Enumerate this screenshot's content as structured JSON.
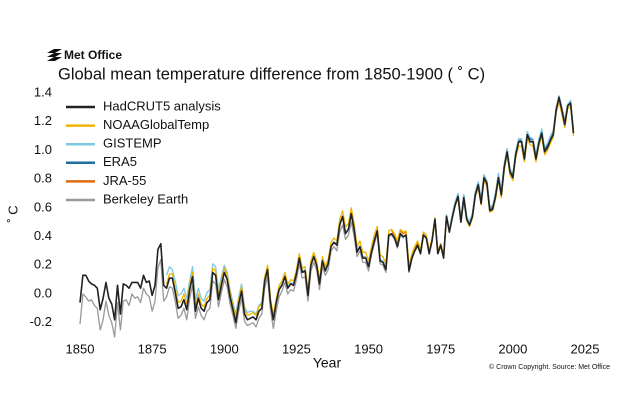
{
  "logo": "Met Office",
  "chart_data": {
    "type": "line",
    "title": "Global mean temperature difference from 1850-1900 ( ˚ C)",
    "xlabel": "Year",
    "ylabel": "˚ C",
    "source_note": "© Crown Copyright. Source: Met Office",
    "xlim": [
      1850,
      2025
    ],
    "xticks": [
      1850,
      1875,
      1900,
      1925,
      1950,
      1975,
      2000,
      2025
    ],
    "ylim": [
      -0.3,
      1.4
    ],
    "yticks": [
      -0.2,
      {
        "value": 0,
        "label": "0.0"
      },
      0.2,
      0.4,
      0.6,
      0.8,
      {
        "value": 1,
        "label": "1.0"
      },
      1.2,
      1.4
    ],
    "legend": "upper-left",
    "x": [
      1850,
      1851,
      1852,
      1853,
      1854,
      1855,
      1856,
      1857,
      1858,
      1859,
      1860,
      1861,
      1862,
      1863,
      1864,
      1865,
      1866,
      1867,
      1868,
      1869,
      1870,
      1871,
      1872,
      1873,
      1874,
      1875,
      1876,
      1877,
      1878,
      1879,
      1880,
      1881,
      1882,
      1883,
      1884,
      1885,
      1886,
      1887,
      1888,
      1889,
      1890,
      1891,
      1892,
      1893,
      1894,
      1895,
      1896,
      1897,
      1898,
      1899,
      1900,
      1901,
      1902,
      1903,
      1904,
      1905,
      1906,
      1907,
      1908,
      1909,
      1910,
      1911,
      1912,
      1913,
      1914,
      1915,
      1916,
      1917,
      1918,
      1919,
      1920,
      1921,
      1922,
      1923,
      1924,
      1925,
      1926,
      1927,
      1928,
      1929,
      1930,
      1931,
      1932,
      1933,
      1934,
      1935,
      1936,
      1937,
      1938,
      1939,
      1940,
      1941,
      1942,
      1943,
      1944,
      1945,
      1946,
      1947,
      1948,
      1949,
      1950,
      1951,
      1952,
      1953,
      1954,
      1955,
      1956,
      1957,
      1958,
      1959,
      1960,
      1961,
      1962,
      1963,
      1964,
      1965,
      1966,
      1967,
      1968,
      1969,
      1970,
      1971,
      1972,
      1973,
      1974,
      1975,
      1976,
      1977,
      1978,
      1979,
      1980,
      1981,
      1982,
      1983,
      1984,
      1985,
      1986,
      1987,
      1988,
      1989,
      1990,
      1991,
      1992,
      1993,
      1994,
      1995,
      1996,
      1997,
      1998,
      1999,
      2000,
      2001,
      2002,
      2003,
      2004,
      2005,
      2006,
      2007,
      2008,
      2009,
      2010,
      2011,
      2012,
      2013,
      2014,
      2015,
      2016,
      2017,
      2018,
      2019,
      2020,
      2021
    ],
    "series": [
      {
        "name": "HadCRUT5 analysis",
        "color": "#222222",
        "values": [
          -0.06,
          0.13,
          0.13,
          0.09,
          0.07,
          0.06,
          0.04,
          -0.11,
          -0.03,
          0.08,
          -0.03,
          -0.07,
          -0.18,
          0.06,
          -0.14,
          0.07,
          0.06,
          0.04,
          0.08,
          0.08,
          0.08,
          0.04,
          0.13,
          0.08,
          0.09,
          -0.01,
          0.06,
          0.31,
          0.35,
          0.06,
          0.04,
          0.11,
          0.11,
          0.01,
          -0.1,
          -0.09,
          -0.04,
          -0.11,
          0.03,
          0.12,
          -0.12,
          -0.03,
          -0.1,
          -0.12,
          -0.06,
          -0.04,
          0.15,
          0.13,
          -0.04,
          0.06,
          0.15,
          0.1,
          -0.02,
          -0.11,
          -0.2,
          -0.07,
          0.02,
          -0.14,
          -0.18,
          -0.17,
          -0.16,
          -0.18,
          -0.12,
          -0.1,
          0.09,
          0.17,
          -0.06,
          -0.18,
          -0.06,
          0.03,
          0.06,
          0.12,
          0.04,
          0.07,
          0.06,
          0.14,
          0.25,
          0.15,
          0.16,
          -0.01,
          0.2,
          0.26,
          0.2,
          0.07,
          0.23,
          0.16,
          0.21,
          0.33,
          0.36,
          0.34,
          0.48,
          0.54,
          0.42,
          0.45,
          0.56,
          0.45,
          0.29,
          0.33,
          0.25,
          0.25,
          0.19,
          0.29,
          0.37,
          0.44,
          0.23,
          0.22,
          0.17,
          0.41,
          0.42,
          0.39,
          0.33,
          0.42,
          0.4,
          0.41,
          0.16,
          0.25,
          0.3,
          0.34,
          0.28,
          0.41,
          0.39,
          0.28,
          0.37,
          0.52,
          0.28,
          0.34,
          0.25,
          0.54,
          0.43,
          0.53,
          0.62,
          0.68,
          0.5,
          0.67,
          0.52,
          0.48,
          0.54,
          0.69,
          0.76,
          0.63,
          0.81,
          0.77,
          0.58,
          0.59,
          0.68,
          0.81,
          0.69,
          0.88,
          0.99,
          0.85,
          0.81,
          0.97,
          1.06,
          1.06,
          0.94,
          1.11,
          1.06,
          1.06,
          0.94,
          1.05,
          1.12,
          0.99,
          1.02,
          1.07,
          1.11,
          1.28,
          1.37,
          1.28,
          1.18,
          1.31,
          1.33,
          1.12
        ]
      },
      {
        "name": "NOAAGlobalTemp",
        "color": "#f0b400",
        "values": [
          null,
          null,
          null,
          null,
          null,
          null,
          null,
          null,
          null,
          null,
          null,
          null,
          null,
          null,
          null,
          null,
          null,
          null,
          null,
          null,
          null,
          null,
          null,
          null,
          null,
          null,
          null,
          null,
          null,
          null,
          0.07,
          0.14,
          0.14,
          0.04,
          -0.06,
          -0.05,
          0.0,
          -0.07,
          0.06,
          0.15,
          -0.09,
          0.0,
          -0.07,
          -0.09,
          -0.03,
          -0.01,
          0.18,
          0.16,
          -0.01,
          0.09,
          0.18,
          0.13,
          0.01,
          -0.08,
          -0.17,
          -0.04,
          0.05,
          -0.11,
          -0.15,
          -0.14,
          -0.13,
          -0.15,
          -0.09,
          -0.07,
          0.12,
          0.2,
          -0.03,
          -0.15,
          -0.03,
          0.06,
          0.09,
          0.15,
          0.07,
          0.1,
          0.09,
          0.17,
          0.28,
          0.18,
          0.19,
          0.02,
          0.23,
          0.29,
          0.23,
          0.1,
          0.26,
          0.19,
          0.24,
          0.36,
          0.39,
          0.37,
          0.52,
          0.58,
          0.47,
          0.49,
          0.6,
          0.49,
          0.33,
          0.37,
          0.29,
          0.29,
          0.23,
          0.33,
          0.41,
          0.47,
          0.27,
          0.26,
          0.21,
          0.44,
          0.45,
          0.42,
          0.37,
          0.45,
          0.43,
          0.44,
          0.2,
          0.28,
          0.33,
          0.37,
          0.31,
          0.43,
          0.41,
          0.3,
          0.39,
          0.53,
          0.3,
          0.35,
          0.27,
          0.54,
          0.44,
          0.53,
          0.61,
          0.67,
          0.5,
          0.66,
          0.51,
          0.47,
          0.53,
          0.68,
          0.74,
          0.62,
          0.79,
          0.75,
          0.57,
          0.58,
          0.66,
          0.79,
          0.67,
          0.86,
          0.97,
          0.83,
          0.79,
          0.95,
          1.03,
          1.03,
          0.92,
          1.08,
          1.04,
          1.03,
          0.92,
          1.03,
          1.1,
          0.97,
          1.0,
          1.05,
          1.09,
          1.26,
          1.34,
          1.25,
          1.16,
          1.29,
          1.31,
          1.1
        ]
      },
      {
        "name": "GISTEMP",
        "color": "#7ec8e3",
        "values": [
          null,
          null,
          null,
          null,
          null,
          null,
          null,
          null,
          null,
          null,
          null,
          null,
          null,
          null,
          null,
          null,
          null,
          null,
          null,
          null,
          null,
          null,
          null,
          null,
          null,
          null,
          null,
          null,
          null,
          null,
          0.13,
          0.19,
          0.17,
          0.09,
          -0.01,
          0.0,
          0.04,
          -0.03,
          0.09,
          0.19,
          -0.04,
          0.04,
          -0.03,
          -0.05,
          0.01,
          0.03,
          0.21,
          0.19,
          0.03,
          0.12,
          0.2,
          0.15,
          0.03,
          -0.06,
          -0.14,
          -0.02,
          0.07,
          -0.09,
          -0.13,
          -0.12,
          -0.12,
          -0.14,
          -0.08,
          -0.06,
          0.12,
          0.19,
          -0.04,
          -0.16,
          -0.04,
          0.04,
          0.07,
          0.13,
          0.05,
          0.08,
          0.07,
          0.15,
          0.26,
          0.16,
          0.17,
          0.0,
          0.21,
          0.27,
          0.21,
          0.08,
          0.24,
          0.17,
          0.22,
          0.34,
          0.36,
          0.35,
          0.48,
          0.54,
          0.43,
          0.45,
          0.55,
          0.44,
          0.3,
          0.33,
          0.26,
          0.26,
          0.2,
          0.3,
          0.38,
          0.44,
          0.24,
          0.23,
          0.18,
          0.41,
          0.42,
          0.39,
          0.33,
          0.42,
          0.4,
          0.41,
          0.17,
          0.26,
          0.3,
          0.34,
          0.29,
          0.41,
          0.4,
          0.29,
          0.38,
          0.53,
          0.29,
          0.35,
          0.26,
          0.55,
          0.45,
          0.55,
          0.64,
          0.7,
          0.52,
          0.69,
          0.54,
          0.5,
          0.56,
          0.71,
          0.78,
          0.66,
          0.83,
          0.79,
          0.61,
          0.62,
          0.7,
          0.84,
          0.72,
          0.9,
          1.01,
          0.87,
          0.84,
          0.99,
          1.08,
          1.08,
          0.97,
          1.13,
          1.09,
          1.08,
          0.97,
          1.08,
          1.15,
          1.02,
          1.05,
          1.1,
          1.14,
          1.3,
          1.38,
          1.3,
          1.21,
          1.32,
          1.35,
          1.14
        ]
      },
      {
        "name": "ERA5",
        "color": "#1f6e9c",
        "values": [
          null,
          null,
          null,
          null,
          null,
          null,
          null,
          null,
          null,
          null,
          null,
          null,
          null,
          null,
          null,
          null,
          null,
          null,
          null,
          null,
          null,
          null,
          null,
          null,
          null,
          null,
          null,
          null,
          null,
          null,
          null,
          null,
          null,
          null,
          null,
          null,
          null,
          null,
          null,
          null,
          null,
          null,
          null,
          null,
          null,
          null,
          null,
          null,
          null,
          null,
          null,
          null,
          null,
          null,
          null,
          null,
          null,
          null,
          null,
          null,
          null,
          null,
          null,
          null,
          null,
          null,
          null,
          null,
          null,
          null,
          null,
          null,
          null,
          null,
          null,
          null,
          null,
          null,
          null,
          null,
          null,
          null,
          null,
          null,
          null,
          null,
          null,
          null,
          null,
          null,
          null,
          null,
          null,
          null,
          null,
          null,
          null,
          null,
          null,
          null,
          null,
          null,
          null,
          null,
          null,
          null,
          null,
          null,
          null,
          null,
          null,
          null,
          null,
          null,
          null,
          null,
          null,
          null,
          null,
          null,
          null,
          null,
          null,
          null,
          null,
          null,
          null,
          null,
          null,
          0.55,
          0.64,
          0.69,
          0.51,
          0.69,
          0.54,
          0.5,
          0.56,
          0.71,
          0.78,
          0.65,
          0.82,
          0.78,
          0.59,
          0.6,
          0.7,
          0.83,
          0.71,
          0.9,
          1.01,
          0.87,
          0.83,
          0.99,
          1.07,
          1.07,
          0.96,
          1.12,
          1.08,
          1.07,
          0.96,
          1.06,
          1.14,
          1.0,
          1.04,
          1.08,
          1.12,
          1.29,
          1.37,
          1.29,
          1.19,
          1.32,
          1.34,
          1.13
        ]
      },
      {
        "name": "JRA-55",
        "color": "#e06c10",
        "values": [
          null,
          null,
          null,
          null,
          null,
          null,
          null,
          null,
          null,
          null,
          null,
          null,
          null,
          null,
          null,
          null,
          null,
          null,
          null,
          null,
          null,
          null,
          null,
          null,
          null,
          null,
          null,
          null,
          null,
          null,
          null,
          null,
          null,
          null,
          null,
          null,
          null,
          null,
          null,
          null,
          null,
          null,
          null,
          null,
          null,
          null,
          null,
          null,
          null,
          null,
          null,
          null,
          null,
          null,
          null,
          null,
          null,
          null,
          null,
          null,
          null,
          null,
          null,
          null,
          null,
          null,
          null,
          null,
          null,
          null,
          null,
          null,
          null,
          null,
          null,
          null,
          null,
          null,
          null,
          null,
          null,
          null,
          null,
          null,
          null,
          null,
          null,
          null,
          null,
          null,
          null,
          null,
          null,
          null,
          null,
          null,
          null,
          null,
          null,
          null,
          null,
          null,
          null,
          null,
          null,
          null,
          null,
          null,
          0.44,
          0.41,
          0.36,
          0.44,
          0.42,
          0.43,
          0.18,
          0.27,
          0.32,
          0.36,
          0.3,
          0.43,
          0.41,
          0.3,
          0.38,
          0.53,
          0.29,
          0.35,
          0.26,
          0.54,
          0.44,
          0.54,
          0.62,
          0.68,
          0.5,
          0.67,
          0.52,
          0.48,
          0.54,
          0.69,
          0.76,
          0.63,
          0.81,
          0.77,
          0.58,
          0.59,
          0.68,
          0.81,
          0.69,
          0.88,
          1.0,
          0.85,
          0.82,
          0.97,
          1.06,
          1.06,
          0.95,
          1.11,
          1.06,
          1.06,
          0.94,
          1.05,
          1.12,
          0.99,
          1.02,
          1.07,
          1.11,
          1.28,
          1.36,
          1.28,
          1.18,
          1.31,
          1.33,
          1.12
        ]
      },
      {
        "name": "Berkeley Earth",
        "color": "#999999",
        "values": [
          -0.21,
          0.0,
          -0.02,
          -0.05,
          -0.04,
          -0.08,
          -0.1,
          -0.25,
          -0.18,
          -0.05,
          -0.15,
          -0.2,
          -0.3,
          -0.06,
          -0.25,
          -0.05,
          -0.04,
          -0.08,
          0.0,
          -0.03,
          -0.02,
          -0.06,
          0.04,
          0.0,
          -0.02,
          -0.12,
          -0.05,
          0.18,
          0.24,
          -0.05,
          -0.02,
          0.05,
          0.04,
          -0.05,
          -0.17,
          -0.15,
          -0.1,
          -0.18,
          -0.03,
          0.06,
          -0.17,
          -0.09,
          -0.15,
          -0.18,
          -0.12,
          -0.1,
          0.09,
          0.07,
          -0.09,
          0.01,
          0.1,
          0.05,
          -0.07,
          -0.15,
          -0.24,
          -0.12,
          -0.03,
          -0.19,
          -0.22,
          -0.21,
          -0.2,
          -0.23,
          -0.17,
          -0.14,
          0.04,
          0.12,
          -0.11,
          -0.24,
          -0.12,
          -0.02,
          0.02,
          0.08,
          0.0,
          0.03,
          0.02,
          0.1,
          0.21,
          0.11,
          0.12,
          -0.05,
          0.16,
          0.22,
          0.17,
          0.03,
          0.19,
          0.13,
          0.17,
          0.3,
          0.33,
          0.3,
          0.43,
          0.48,
          0.38,
          0.41,
          0.5,
          0.4,
          0.26,
          0.3,
          0.22,
          0.22,
          0.16,
          0.27,
          0.35,
          0.42,
          0.21,
          0.2,
          0.15,
          0.4,
          0.41,
          0.38,
          0.32,
          0.41,
          0.39,
          0.41,
          0.15,
          0.24,
          0.3,
          0.33,
          0.28,
          0.41,
          0.4,
          0.28,
          0.37,
          0.53,
          0.29,
          0.35,
          0.26,
          0.55,
          0.45,
          0.55,
          0.63,
          0.7,
          0.52,
          0.69,
          0.53,
          0.5,
          0.56,
          0.71,
          0.78,
          0.65,
          0.83,
          0.79,
          0.6,
          0.61,
          0.7,
          0.84,
          0.71,
          0.9,
          1.01,
          0.87,
          0.83,
          0.99,
          1.08,
          1.08,
          0.96,
          1.13,
          1.08,
          1.08,
          0.96,
          1.07,
          1.14,
          1.01,
          1.04,
          1.09,
          1.13,
          1.29,
          1.38,
          1.29,
          1.2,
          1.32,
          1.34,
          1.14
        ]
      }
    ]
  }
}
